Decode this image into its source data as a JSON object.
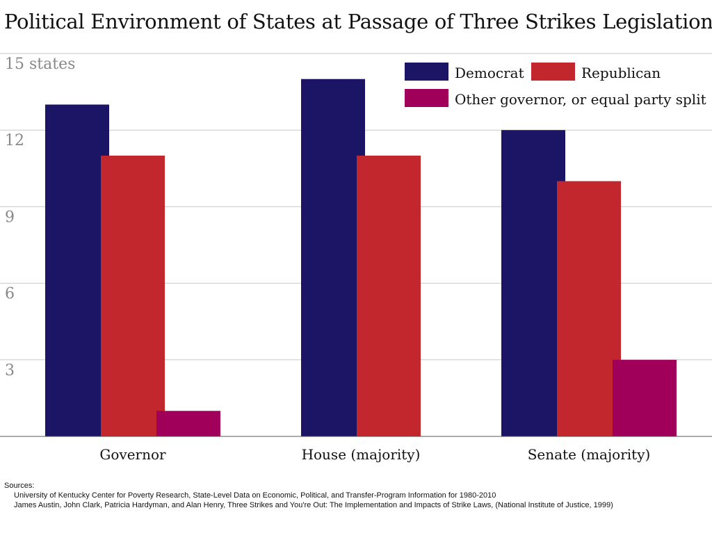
{
  "chart_data": {
    "type": "bar",
    "title": "Political Environment of States at Passage of Three Strikes Legislation",
    "categories": [
      "Governor",
      "House (majority)",
      "Senate (majority)"
    ],
    "series": [
      {
        "name": "Democrat",
        "color": "#1c1464",
        "values": [
          13,
          14,
          12
        ]
      },
      {
        "name": "Republican",
        "color": "#c1272d",
        "values": [
          11,
          11,
          10
        ]
      },
      {
        "name": "Other governor, or equal party split",
        "color": "#a0005a",
        "values": [
          1,
          0,
          3
        ]
      }
    ],
    "ylim": [
      0,
      15
    ],
    "yticks": [
      3,
      6,
      9,
      12,
      15
    ],
    "ytick_labels": [
      "3",
      "6",
      "9",
      "12",
      "15 states"
    ],
    "grid": true,
    "legend": "top-right"
  },
  "sources": {
    "heading": "Sources:",
    "lines": [
      "University of Kentucky Center for Poverty Research, State-Level Data on Economic, Political, and Transfer-Program Information for 1980-2010",
      "James Austin, John Clark, Patricia Hardyman, and Alan Henry, Three Strikes and You're Out: The Implementation and Impacts of Strike Laws, (National Institute of Justice, 1999)"
    ]
  }
}
